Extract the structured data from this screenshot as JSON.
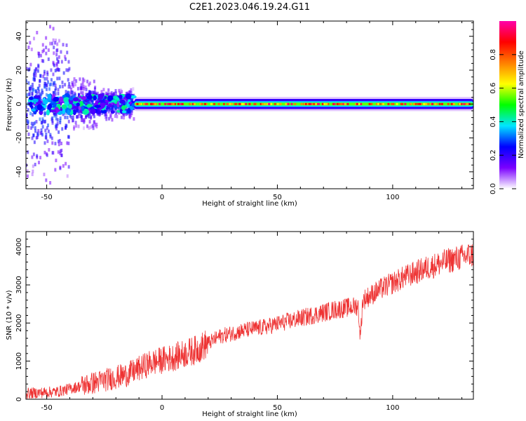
{
  "title": "C2E1.2023.046.19.24.G11",
  "chart_data": [
    {
      "type": "heatmap",
      "xlabel": "Height of straight line (km)",
      "ylabel": "Frequency (Hz)",
      "xlim": [
        -59,
        135
      ],
      "ylim": [
        -50,
        49
      ],
      "xticks": [
        -50,
        0,
        50,
        100
      ],
      "yticks": [
        -40,
        -20,
        0,
        20,
        40
      ],
      "colorbar": {
        "label": "Normalized spectral amplitude",
        "range": [
          0,
          1
        ],
        "ticks": [
          0.0,
          0.2,
          0.4,
          0.6,
          0.8
        ],
        "colors": [
          "#ffffff",
          "#7a00ff",
          "#0000ff",
          "#00e5ff",
          "#00ff00",
          "#ffff00",
          "#ff7f00",
          "#ff0000",
          "#ff00aa"
        ]
      },
      "features": {
        "noisy_region_km": [
          -59,
          -12
        ],
        "band_start_km": -12,
        "band_center_hz": 0,
        "band_halfwidth_hz": 3
      }
    },
    {
      "type": "line",
      "xlabel": "Height of straight line (km)",
      "ylabel": "SNR (10 * v/v)",
      "xlim": [
        -59,
        135
      ],
      "ylim": [
        0,
        4400
      ],
      "xticks": [
        -50,
        0,
        50,
        100
      ],
      "yticks": [
        0,
        1000,
        2000,
        3000,
        4000
      ],
      "color": "#ee3333",
      "trend": {
        "x": [
          -59,
          -45,
          -35,
          -25,
          -15,
          -5,
          5,
          15,
          25,
          35,
          45,
          55,
          65,
          75,
          85,
          86,
          87,
          95,
          105,
          115,
          125,
          135
        ],
        "y": [
          150,
          200,
          350,
          500,
          650,
          950,
          1100,
          1300,
          1650,
          1800,
          1900,
          2050,
          2200,
          2350,
          2450,
          1600,
          2600,
          2900,
          3200,
          3450,
          3650,
          3800
        ]
      }
    }
  ]
}
